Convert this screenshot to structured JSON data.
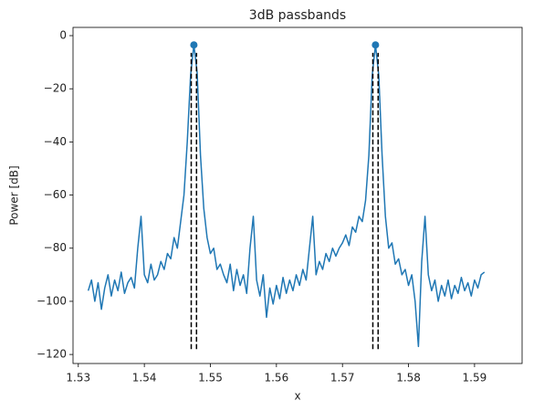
{
  "chart_data": {
    "type": "line",
    "title": "3dB passbands",
    "x_label": "x",
    "y_label": "Power [dB]",
    "x": [
      1.5315,
      1.532,
      1.5325,
      1.533,
      1.5335,
      1.534,
      1.5345,
      1.535,
      1.5355,
      1.536,
      1.5365,
      1.537,
      1.5375,
      1.538,
      1.5385,
      1.539,
      1.5395,
      1.54,
      1.5405,
      1.541,
      1.5415,
      1.542,
      1.5425,
      1.543,
      1.5435,
      1.544,
      1.5445,
      1.545,
      1.5455,
      1.546,
      1.5465,
      1.547,
      1.5475,
      1.548,
      1.5485,
      1.549,
      1.5495,
      1.55,
      1.5505,
      1.551,
      1.5515,
      1.552,
      1.5525,
      1.553,
      1.5535,
      1.554,
      1.5545,
      1.555,
      1.5555,
      1.556,
      1.5565,
      1.557,
      1.5575,
      1.558,
      1.5585,
      1.559,
      1.5595,
      1.56,
      1.5605,
      1.561,
      1.5615,
      1.562,
      1.5625,
      1.563,
      1.5635,
      1.564,
      1.5645,
      1.565,
      1.5655,
      1.566,
      1.5665,
      1.567,
      1.5675,
      1.568,
      1.5685,
      1.569,
      1.5695,
      1.57,
      1.5705,
      1.571,
      1.5715,
      1.572,
      1.5725,
      1.573,
      1.5735,
      1.574,
      1.5745,
      1.575,
      1.5755,
      1.576,
      1.5765,
      1.577,
      1.5775,
      1.578,
      1.5785,
      1.579,
      1.5795,
      1.58,
      1.5805,
      1.581,
      1.5815,
      1.582,
      1.5825,
      1.583,
      1.5835,
      1.584,
      1.5845,
      1.585,
      1.5855,
      1.586,
      1.5865,
      1.587,
      1.5875,
      1.588,
      1.5885,
      1.589,
      1.5895,
      1.59,
      1.5905,
      1.591,
      1.5915
    ],
    "series": [
      {
        "color": "#1f77b4",
        "values": [
          -96,
          -92,
          -100,
          -93,
          -103,
          -95,
          -90,
          -98,
          -92,
          -96,
          -89,
          -97,
          -93,
          -91,
          -95,
          -80,
          -68,
          -90,
          -93,
          -86,
          -92,
          -90,
          -85,
          -88,
          -82,
          -84,
          -76,
          -80,
          -70,
          -60,
          -40,
          -15,
          -3.5,
          -14,
          -45,
          -65,
          -76,
          -82,
          -80,
          -88,
          -86,
          -90,
          -93,
          -86,
          -96,
          -88,
          -94,
          -90,
          -97,
          -80,
          -68,
          -92,
          -98,
          -90,
          -106,
          -95,
          -101,
          -94,
          -99,
          -91,
          -97,
          -92,
          -96,
          -90,
          -94,
          -88,
          -92,
          -80,
          -68,
          -90,
          -85,
          -88,
          -82,
          -85,
          -80,
          -83,
          -80,
          -78,
          -75,
          -79,
          -72,
          -74,
          -68,
          -70,
          -62,
          -45,
          -15,
          -3.5,
          -15,
          -45,
          -68,
          -80,
          -78,
          -86,
          -84,
          -90,
          -88,
          -94,
          -90,
          -100,
          -117,
          -85,
          -68,
          -90,
          -96,
          -92,
          -100,
          -94,
          -98,
          -92,
          -99,
          -94,
          -97,
          -91,
          -96,
          -93,
          -98,
          -92,
          -95,
          -90,
          -89
        ]
      }
    ],
    "peaks": {
      "color": "#1f77b4",
      "x": [
        1.5475,
        1.575
      ],
      "values": [
        -3.5,
        -3.5
      ]
    },
    "vlines": {
      "color": "#000000",
      "x": [
        1.5471,
        1.5479,
        1.5746,
        1.5754
      ],
      "ymin": -118,
      "ymax": -6.5
    },
    "xlim": [
      1.5292,
      1.5972
    ],
    "ylim": [
      -123.4,
      3.1
    ],
    "xticks": [
      1.53,
      1.54,
      1.55,
      1.56,
      1.57,
      1.58,
      1.59
    ],
    "yticks": [
      {
        "value": -120,
        "label": "−120"
      },
      {
        "value": -100,
        "label": "−100"
      },
      {
        "value": -80,
        "label": "−80"
      },
      {
        "value": -60,
        "label": "−60"
      },
      {
        "value": -40,
        "label": "−40"
      },
      {
        "value": -20,
        "label": "−20"
      },
      0
    ]
  }
}
